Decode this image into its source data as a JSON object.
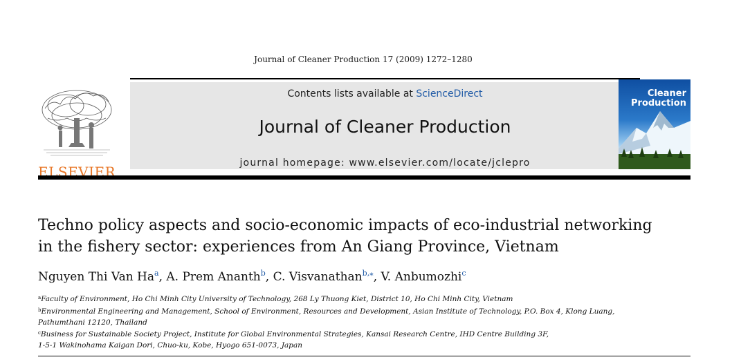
{
  "citation": "Journal of Cleaner Production 17 (2009) 1272–1280",
  "header": {
    "publisher_logo": "ELSEVIER",
    "contents_prefix": "Contents lists available at ",
    "contents_link": "ScienceDirect",
    "journal_title": "Journal of Cleaner Production",
    "homepage": "journal homepage: www.elsevier.com/locate/jclepro",
    "cover_title_line1": "Cleaner",
    "cover_title_line2": "Production"
  },
  "article": {
    "title_line1": "Techno policy aspects and socio-economic impacts of eco-industrial networking",
    "title_line2": "in the fishery sector: experiences from An Giang Province, Vietnam"
  },
  "authors": [
    {
      "name": "Nguyen Thi Van Ha",
      "sup": "a",
      "sep": ", "
    },
    {
      "name": "A. Prem Ananth",
      "sup": "b",
      "sep": ", "
    },
    {
      "name": "C. Visvanathan",
      "sup": "b,⁎",
      "sep": ", "
    },
    {
      "name": "V. Anbumozhi",
      "sup": "c",
      "sep": ""
    }
  ],
  "affiliations": {
    "a_sup": "a",
    "a_text": "Faculty of Environment, Ho Chi Minh City University of Technology, 268 Ly Thuong Kiet, District 10, Ho Chi Minh City, Vietnam",
    "b_sup": "b",
    "b_text_line1": "Environmental Engineering and Management, School of Environment, Resources and Development, Asian Institute of Technology, P.O. Box 4, Klong Luang,",
    "b_text_line2": "Pathumthani 12120, Thailand",
    "c_sup": "c",
    "c_text_line1": "Business for Sustainable Society Project, Institute for Global Environmental Strategies, Kansai Research Centre, IHD Centre Building 3F,",
    "c_text_line2": "1-5-1 Wakinohama Kaigan Dori, Chuo-ku, Kobe, Hyogo 651-0073, Japan"
  },
  "colors": {
    "elsevier_orange": "#e8792b",
    "sciencedirect_blue": "#1f5aa6",
    "banner_gray": "#e6e6e6"
  }
}
